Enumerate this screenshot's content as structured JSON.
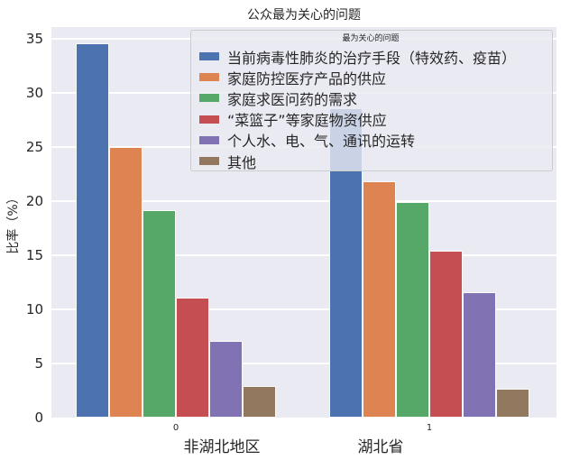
{
  "title": "公众最为关心的问题",
  "axis": {
    "yticks": [
      0,
      5,
      10,
      15,
      20,
      25,
      30,
      35
    ],
    "xtick_labels": [
      "0",
      "1"
    ]
  },
  "legend": {
    "title": "最为关心的问题"
  },
  "colors": {
    "plot_bg": "#EAEAF2",
    "grid": "#FFFFFF",
    "text": "#262626",
    "legend_bg": "rgba(234,234,242,0.8)",
    "legend_border": "#cccccc"
  },
  "chart_data": {
    "type": "bar",
    "title": "公众最为关心的问题",
    "xlabel": "",
    "ylabel": "比率（%）",
    "ylim": [
      0,
      36.1
    ],
    "grid": true,
    "legend_position": "upper right",
    "legend_title": "最为关心的问题",
    "categories": [
      "非湖北地区",
      "湖北省"
    ],
    "series": [
      {
        "name": "当前病毒性肺炎的治疗手段（特效药、疫苗）",
        "color": "#4C72B0",
        "values": [
          34.6,
          28.6
        ]
      },
      {
        "name": "家庭防控医疗产品的供应",
        "color": "#DD8452",
        "values": [
          25.0,
          21.8
        ]
      },
      {
        "name": "家庭求医问药的需求",
        "color": "#55A868",
        "values": [
          19.2,
          19.9
        ]
      },
      {
        "name": "“菜篮子”等家庭物资供应",
        "color": "#C44E52",
        "values": [
          11.1,
          15.4
        ]
      },
      {
        "name": "个人水、电、气、通讯的运转",
        "color": "#8172B3",
        "values": [
          7.1,
          11.6
        ]
      },
      {
        "name": "其他",
        "color": "#937860",
        "values": [
          2.9,
          2.7
        ]
      }
    ]
  }
}
